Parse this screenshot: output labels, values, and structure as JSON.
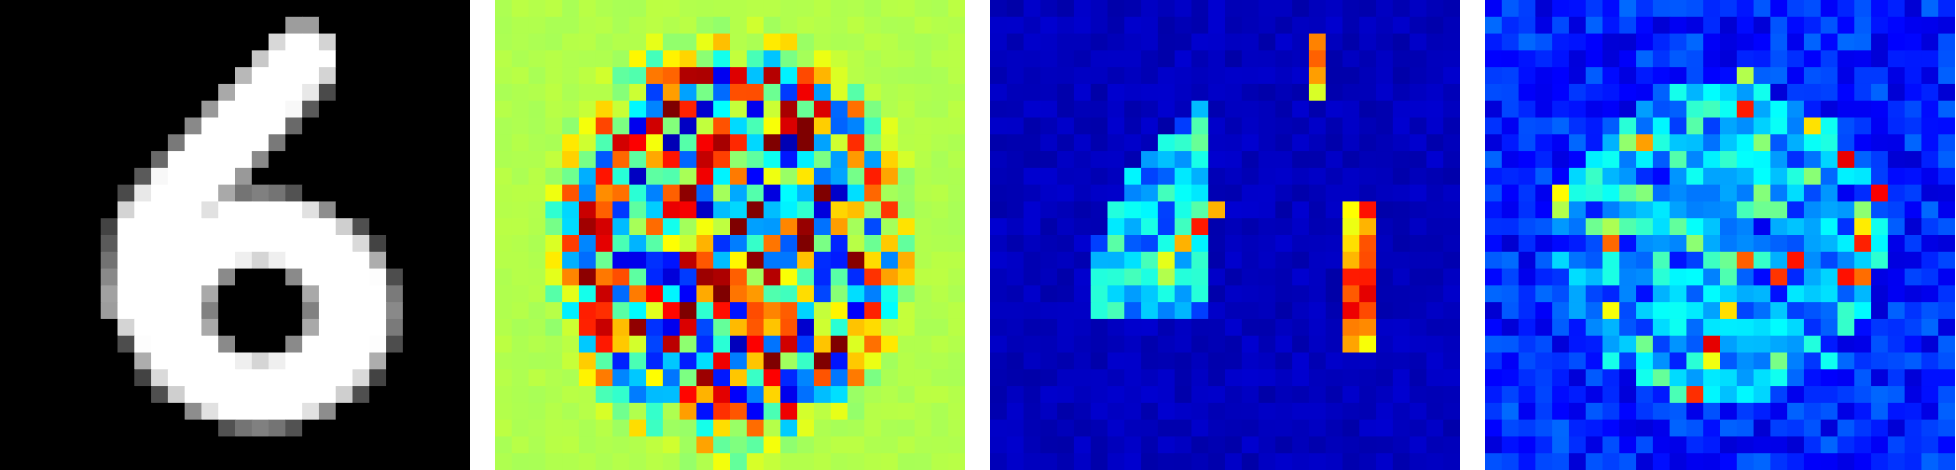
{
  "figure": {
    "panels": [
      {
        "id": "input-digit",
        "label": "",
        "colormap": "gray",
        "background": "#000000"
      },
      {
        "id": "signed-attribution",
        "label": "",
        "colormap": "jet-diverging",
        "background": "#8dfa6e"
      },
      {
        "id": "positive-saliency",
        "label": "",
        "colormap": "jet",
        "background": "#00008b"
      },
      {
        "id": "noisy-saliency",
        "label": "",
        "colormap": "jet",
        "background": "#0000a8"
      }
    ],
    "grid": {
      "rows": 28,
      "cols": 28
    }
  },
  "palette": {
    "jet": [
      "#00007f",
      "#0000ff",
      "#007fff",
      "#00ffff",
      "#7fff7f",
      "#ffff00",
      "#ff7f00",
      "#ff0000",
      "#7f0000"
    ]
  }
}
